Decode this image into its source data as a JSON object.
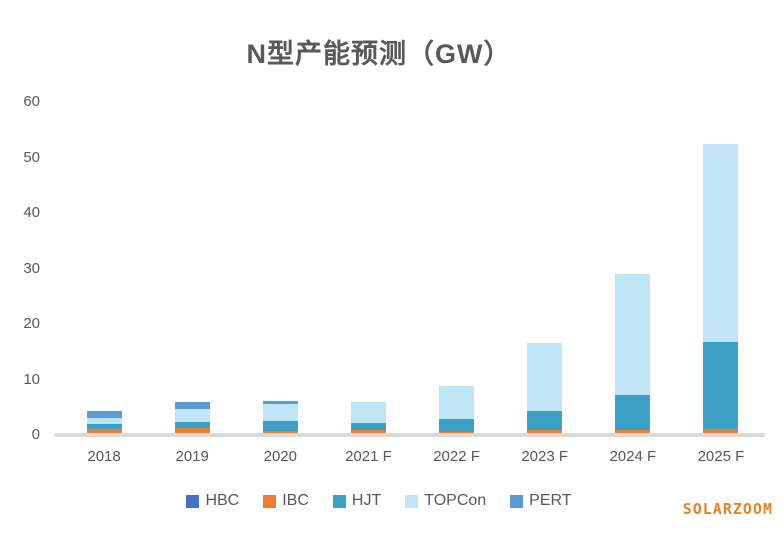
{
  "title": "N型产能预测（GW）",
  "watermark": "SOLARZOOM",
  "axis": {
    "y_tick_labels": [
      "0",
      "10",
      "20",
      "30",
      "40",
      "50",
      "60"
    ],
    "x_tick_labels": [
      "2018",
      "2019",
      "2020",
      "2021 F",
      "2022 F",
      "2023 F",
      "2024 F",
      "2025 F"
    ]
  },
  "legend": {
    "items": [
      {
        "label": "HBC",
        "color": "#4472c4"
      },
      {
        "label": "IBC",
        "color": "#ed7d31"
      },
      {
        "label": "HJT",
        "color": "#3da0c7"
      },
      {
        "label": "TOPCon",
        "color": "#bfe5f6"
      },
      {
        "label": "PERT",
        "color": "#5b9bd5"
      }
    ]
  },
  "chart_data": {
    "type": "bar",
    "stacked": true,
    "title": "N型产能预测（GW）",
    "xlabel": "",
    "ylabel": "",
    "categories": [
      "2018",
      "2019",
      "2020",
      "2021 F",
      "2022 F",
      "2023 F",
      "2024 F",
      "2025 F"
    ],
    "series": [
      {
        "name": "HBC",
        "color": "#4472c4",
        "values": [
          0,
          0,
          0,
          0,
          0,
          0,
          0,
          0
        ]
      },
      {
        "name": "IBC",
        "color": "#ed7d31",
        "values": [
          1.0,
          1.2,
          0.8,
          0.9,
          0.6,
          0.9,
          0.9,
          1.0
        ]
      },
      {
        "name": "HJT",
        "color": "#3da0c7",
        "values": [
          0.9,
          1.2,
          1.8,
          1.3,
          2.3,
          3.5,
          6.3,
          15.7
        ]
      },
      {
        "name": "TOPCon",
        "color": "#bfe5f6",
        "values": [
          1.2,
          2.3,
          3.0,
          3.8,
          6.0,
          12.2,
          21.8,
          35.8
        ]
      },
      {
        "name": "PERT",
        "color": "#5b9bd5",
        "values": [
          1.2,
          1.2,
          0.6,
          0,
          0,
          0,
          0,
          0
        ]
      }
    ],
    "totals": [
      4.3,
      5.9,
      6.2,
      6.0,
      8.9,
      16.6,
      29.0,
      52.5
    ],
    "ylim": [
      0,
      60
    ],
    "yticks": [
      0,
      10,
      20,
      30,
      40,
      50,
      60
    ],
    "grid": false,
    "legend_position": "bottom"
  }
}
